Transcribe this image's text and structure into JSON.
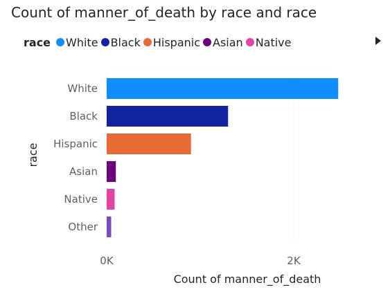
{
  "chart_data": {
    "type": "bar",
    "orientation": "horizontal",
    "title": "Count of manner_of_death by race and race",
    "legend": {
      "title": "race",
      "placement": "top-left",
      "entries": [
        {
          "name": "White",
          "color": "#118DFF"
        },
        {
          "name": "Black",
          "color": "#12239E"
        },
        {
          "name": "Hispanic",
          "color": "#E66C37"
        },
        {
          "name": "Asian",
          "color": "#6B007B"
        },
        {
          "name": "Native",
          "color": "#E044A7"
        }
      ]
    },
    "categories": [
      "White",
      "Black",
      "Hispanic",
      "Asian",
      "Native",
      "Other"
    ],
    "values": [
      2476,
      1298,
      902,
      98,
      85,
      48
    ],
    "colors": [
      "#118DFF",
      "#12239E",
      "#E66C37",
      "#6B007B",
      "#E044A7",
      "#744EC2"
    ],
    "xlabel": "Count of manner_of_death",
    "ylabel": "race",
    "xlim": [
      0,
      2500
    ],
    "xticks": [
      0,
      2000
    ],
    "xtick_labels": [
      "0K",
      "2K"
    ],
    "grid": true
  },
  "legend_next_icon": "chevron-right-icon"
}
